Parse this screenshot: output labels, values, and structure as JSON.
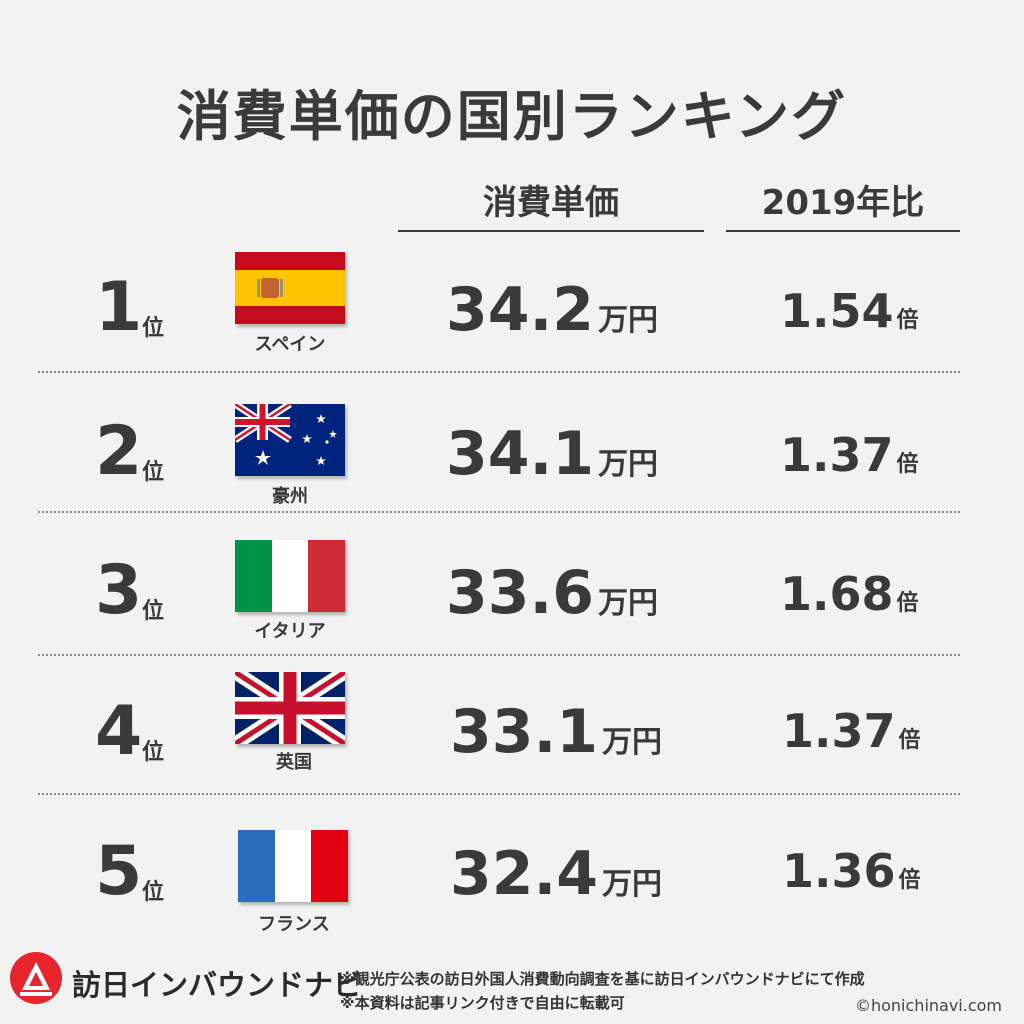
{
  "title": "消費単価の国別ランキング",
  "columns": {
    "price_header": "消費単価",
    "ratio_header": "2019年比"
  },
  "units": {
    "rank_suffix": "位",
    "price_unit": "万円",
    "ratio_unit": "倍"
  },
  "chart_data": {
    "type": "table",
    "title": "消費単価の国別ランキング",
    "columns": [
      "消費単価",
      "2019年比"
    ],
    "rows": [
      {
        "rank": "1",
        "country": "スペイン",
        "price": "34.2",
        "ratio": "1.54"
      },
      {
        "rank": "2",
        "country": "豪州",
        "price": "34.1",
        "ratio": "1.37"
      },
      {
        "rank": "3",
        "country": "イタリア",
        "price": "33.6",
        "ratio": "1.68"
      },
      {
        "rank": "4",
        "country": "英国",
        "price": "33.1",
        "ratio": "1.37"
      },
      {
        "rank": "5",
        "country": "フランス",
        "price": "32.4",
        "ratio": "1.36"
      }
    ]
  },
  "flags": [
    "spain-flag",
    "australia-flag",
    "italy-flag",
    "uk-flag",
    "france-flag"
  ],
  "colors": {
    "text": "#3a3a3a",
    "background": "#f2f2f2",
    "logo_red": "#e8242c",
    "spain_red": "#c60b1e",
    "spain_yellow": "#ffc400",
    "australia_blue": "#00247d",
    "italy_green": "#009246",
    "italy_red": "#ce2b37",
    "uk_blue": "#012169",
    "uk_red": "#c8102e",
    "france_blue": "#2a6ebb",
    "france_red": "#e1000f"
  },
  "footer": {
    "brand": "訪日インバウンドナビ",
    "note1": "※観光庁公表の訪日外国人消費動向調査を基に訪日インバウンドナビにて作成",
    "note2": "※本資料は記事リンク付きで自由に転載可",
    "credit": "©honichinavi.com"
  }
}
